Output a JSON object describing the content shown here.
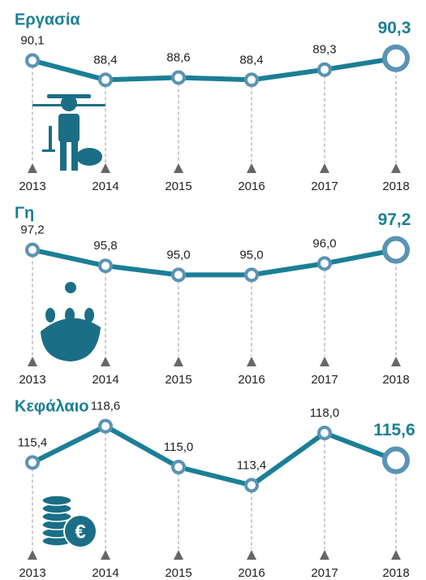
{
  "chart_data": [
    {
      "type": "line",
      "title": "Εργασία",
      "categories": [
        "2013",
        "2014",
        "2015",
        "2016",
        "2017",
        "2018"
      ],
      "values": [
        90.1,
        88.4,
        88.6,
        88.4,
        89.3,
        90.3
      ],
      "value_labels": [
        "90,1",
        "88,4",
        "88,6",
        "88,4",
        "89,3",
        "90,3"
      ],
      "color": "#1b7f96"
    },
    {
      "type": "line",
      "title": "Γη",
      "categories": [
        "2013",
        "2014",
        "2015",
        "2016",
        "2017",
        "2018"
      ],
      "values": [
        97.2,
        95.8,
        95.0,
        95.0,
        96.0,
        97.2
      ],
      "value_labels": [
        "97,2",
        "95,8",
        "95,0",
        "95,0",
        "96,0",
        "97,2"
      ],
      "color": "#1b7f96"
    },
    {
      "type": "line",
      "title": "Κεφάλαιο",
      "categories": [
        "2013",
        "2014",
        "2015",
        "2016",
        "2017",
        "2018"
      ],
      "values": [
        115.4,
        118.6,
        115.0,
        113.4,
        118.0,
        115.6
      ],
      "value_labels": [
        "115,4",
        "118,6",
        "115,0",
        "113,4",
        "118,0",
        "115,6"
      ],
      "color": "#1b7f96"
    }
  ]
}
